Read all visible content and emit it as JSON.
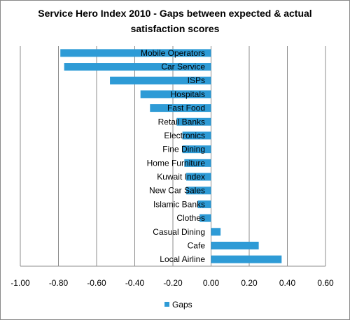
{
  "chart_data": {
    "type": "bar",
    "orientation": "horizontal",
    "title_line1": "Service Hero Index 2010 - Gaps between expected & actual",
    "title_line2": "satisfaction scores",
    "categories": [
      "Mobile Operators",
      "Car Service",
      "ISPs",
      "Hospitals",
      "Fast Food",
      "Retail Banks",
      "Electronics",
      "Fine Dining",
      "Home Furniture",
      "Kuwait Index",
      "New Car Sales",
      "Islamic Banks",
      "Clothes",
      "Casual Dining",
      "Cafe",
      "Local Airline"
    ],
    "series": [
      {
        "name": "Gaps",
        "values": [
          -0.79,
          -0.77,
          -0.53,
          -0.37,
          -0.32,
          -0.18,
          -0.15,
          -0.15,
          -0.14,
          -0.13,
          -0.13,
          -0.07,
          -0.06,
          0.05,
          0.25,
          0.37
        ]
      }
    ],
    "xlim": [
      -1.0,
      0.6
    ],
    "xticks": [
      "-1.00",
      "-0.80",
      "-0.60",
      "-0.40",
      "-0.20",
      "0.00",
      "0.20",
      "0.40",
      "0.60"
    ],
    "xtick_values": [
      -1.0,
      -0.8,
      -0.6,
      -0.4,
      -0.2,
      0.0,
      0.2,
      0.4,
      0.6
    ],
    "grid": "vertical",
    "legend": "bottom",
    "colors": {
      "bar": "#2e9bd6",
      "grid": "#8c8c8c",
      "axis": "#8c8c8c"
    }
  }
}
